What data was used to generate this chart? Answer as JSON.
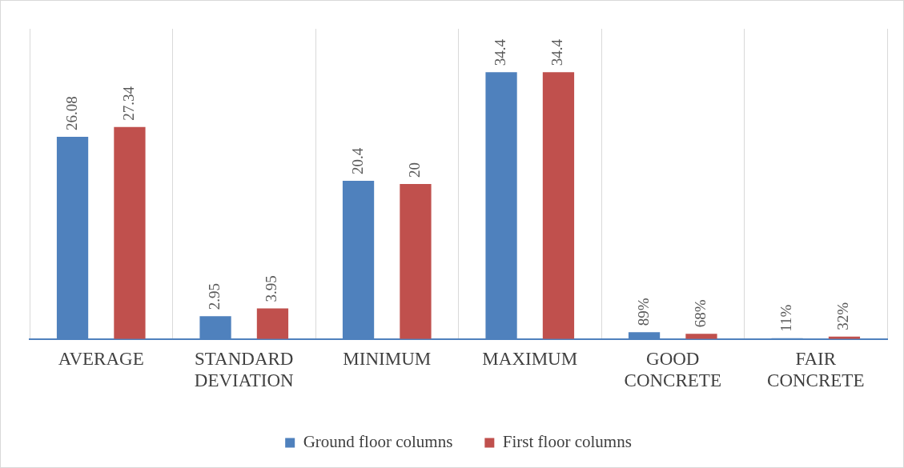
{
  "chart_data": {
    "type": "bar",
    "categories": [
      "AVERAGE",
      "STANDARD DEVIATION",
      "MINIMUM",
      "MAXIMUM",
      "GOOD CONCRETE",
      "FAIR CONCRETE"
    ],
    "series": [
      {
        "name": "Ground floor columns",
        "color": "#4f81bd",
        "values": [
          26.08,
          2.95,
          20.4,
          34.4,
          0.89,
          0.11
        ],
        "value_labels": [
          "26.08",
          "2.95",
          "20.4",
          "34.4",
          "89%",
          "11%"
        ]
      },
      {
        "name": "First floor columns",
        "color": "#c0504d",
        "values": [
          27.34,
          3.95,
          20,
          34.4,
          0.68,
          0.32
        ],
        "value_labels": [
          "27.34",
          "3.95",
          "20",
          "34.4",
          "68%",
          "32%"
        ]
      }
    ],
    "ylim": [
      0,
      40
    ],
    "grid": "x",
    "legend": "bottom",
    "tick_labels": "x"
  }
}
